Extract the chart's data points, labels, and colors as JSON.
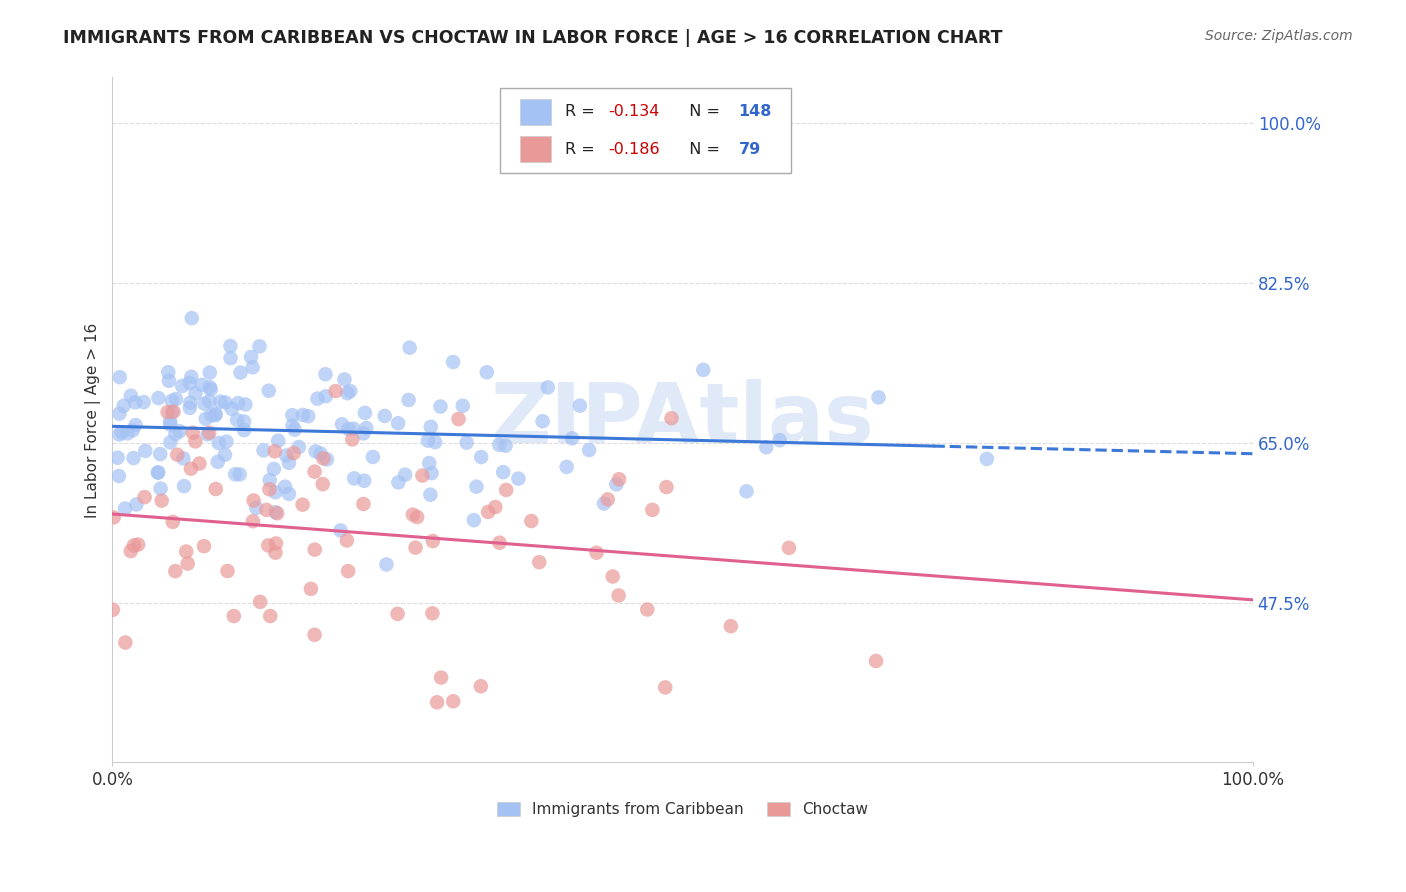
{
  "title": "IMMIGRANTS FROM CARIBBEAN VS CHOCTAW IN LABOR FORCE | AGE > 16 CORRELATION CHART",
  "source": "Source: ZipAtlas.com",
  "ylabel": "In Labor Force | Age > 16",
  "xlim": [
    0.0,
    1.0
  ],
  "ylim": [
    0.3,
    1.05
  ],
  "yticks": [
    0.475,
    0.65,
    0.825,
    1.0
  ],
  "ytick_labels": [
    "47.5%",
    "65.0%",
    "82.5%",
    "100.0%"
  ],
  "xtick_labels": [
    "0.0%",
    "100.0%"
  ],
  "blue_R": -0.134,
  "blue_N": 148,
  "pink_R": -0.186,
  "pink_N": 79,
  "blue_color": "#a4c2f4",
  "pink_color": "#ea9999",
  "blue_line_color": "#3c78d8",
  "pink_line_color": "#e06090",
  "blue_label": "Immigrants from Caribbean",
  "pink_label": "Choctaw",
  "legend_R_color": "#cc0000",
  "legend_N_color": "#3366cc",
  "watermark_zip": "ZIP",
  "watermark_atlas": "Atlas",
  "watermark_color_zip": "#b8d0f0",
  "watermark_color_atlas": "#90b8e8",
  "background_color": "#ffffff",
  "grid_color": "#dddddd",
  "blue_line_start_y": 0.668,
  "blue_line_end_y": 0.638,
  "pink_line_start_y": 0.572,
  "pink_line_end_y": 0.478,
  "blue_line_solid_end_x": 0.72,
  "blue_line_dashed_start_x": 0.72
}
